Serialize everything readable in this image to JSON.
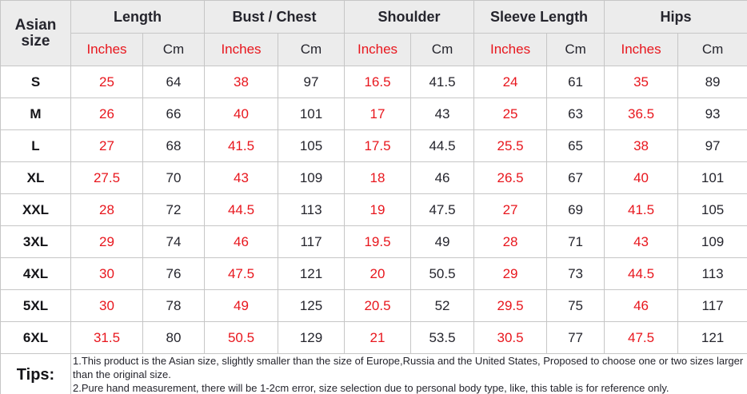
{
  "chart_data": {
    "type": "table",
    "corner_header": "Asian size",
    "column_groups": [
      "Length",
      "Bust / Chest",
      "Shoulder",
      "Sleeve Length",
      "Hips"
    ],
    "unit_labels": [
      "Inches",
      "Cm"
    ],
    "rows": [
      {
        "size": "S",
        "values": [
          "25",
          "64",
          "38",
          "97",
          "16.5",
          "41.5",
          "24",
          "61",
          "35",
          "89"
        ]
      },
      {
        "size": "M",
        "values": [
          "26",
          "66",
          "40",
          "101",
          "17",
          "43",
          "25",
          "63",
          "36.5",
          "93"
        ]
      },
      {
        "size": "L",
        "values": [
          "27",
          "68",
          "41.5",
          "105",
          "17.5",
          "44.5",
          "25.5",
          "65",
          "38",
          "97"
        ]
      },
      {
        "size": "XL",
        "values": [
          "27.5",
          "70",
          "43",
          "109",
          "18",
          "46",
          "26.5",
          "67",
          "40",
          "101"
        ]
      },
      {
        "size": "XXL",
        "values": [
          "28",
          "72",
          "44.5",
          "113",
          "19",
          "47.5",
          "27",
          "69",
          "41.5",
          "105"
        ]
      },
      {
        "size": "3XL",
        "values": [
          "29",
          "74",
          "46",
          "117",
          "19.5",
          "49",
          "28",
          "71",
          "43",
          "109"
        ]
      },
      {
        "size": "4XL",
        "values": [
          "30",
          "76",
          "47.5",
          "121",
          "20",
          "50.5",
          "29",
          "73",
          "44.5",
          "113"
        ]
      },
      {
        "size": "5XL",
        "values": [
          "30",
          "78",
          "49",
          "125",
          "20.5",
          "52",
          "29.5",
          "75",
          "46",
          "117"
        ]
      },
      {
        "size": "6XL",
        "values": [
          "31.5",
          "80",
          "50.5",
          "129",
          "21",
          "53.5",
          "30.5",
          "77",
          "47.5",
          "121"
        ]
      }
    ],
    "tips_label": "Tips:",
    "tips_notes": [
      "1.This product is the Asian size, slightly smaller than the size of Europe,Russia and the United States, Proposed to choose one or two sizes larger than the original size.",
      "2.Pure hand measurement, there will be 1-2cm error, size selection due to personal body type, like, this table is for reference only."
    ]
  },
  "colors": {
    "red_text": "#e8161d",
    "black_text": "#25252d",
    "header_bg": "#ececec",
    "border": "#c6c6c6",
    "row_bg": "#ffffff"
  }
}
